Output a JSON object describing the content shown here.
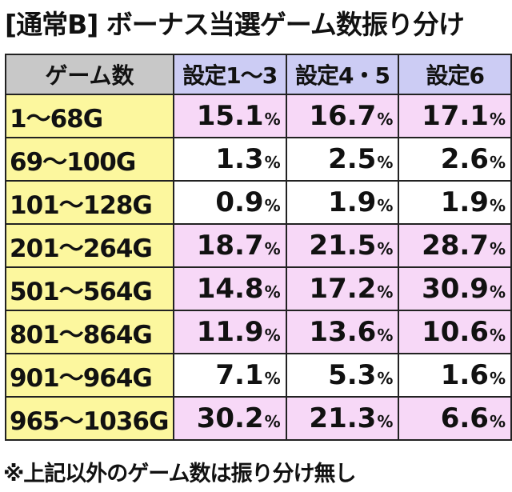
{
  "title": "[通常B] ボーナス当選ゲーム数振り分け",
  "table": {
    "corner_header": "ゲーム数",
    "setting_headers": [
      "設定1〜3",
      "設定4・5",
      "設定6"
    ],
    "percent_sign": "%",
    "rows": [
      {
        "games": "1〜68G",
        "s1_3": "15.1",
        "s4_5": "16.7",
        "s6": "17.1",
        "highlight": "pink"
      },
      {
        "games": "69〜100G",
        "s1_3": "1.3",
        "s4_5": "2.5",
        "s6": "2.6",
        "highlight": "white"
      },
      {
        "games": "101〜128G",
        "s1_3": "0.9",
        "s4_5": "1.9",
        "s6": "1.9",
        "highlight": "white"
      },
      {
        "games": "201〜264G",
        "s1_3": "18.7",
        "s4_5": "21.5",
        "s6": "28.7",
        "highlight": "pink"
      },
      {
        "games": "501〜564G",
        "s1_3": "14.8",
        "s4_5": "17.2",
        "s6": "30.9",
        "highlight": "pink"
      },
      {
        "games": "801〜864G",
        "s1_3": "11.9",
        "s4_5": "13.6",
        "s6": "10.6",
        "highlight": "pink"
      },
      {
        "games": "901〜964G",
        "s1_3": "7.1",
        "s4_5": "5.3",
        "s6": "1.6",
        "highlight": "white"
      },
      {
        "games": "965〜1036G",
        "s1_3": "30.2",
        "s4_5": "21.3",
        "s6": "6.6",
        "highlight": "pink"
      }
    ]
  },
  "note": "※上記以外のゲーム数は振り分け無し",
  "colors": {
    "header_gray": "#c8c8c8",
    "header_lavender": "#ccccf4",
    "label_yellow": "#fcf79e",
    "row_pink": "#f7d8f7"
  }
}
